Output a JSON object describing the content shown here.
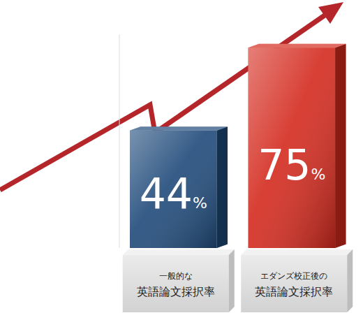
{
  "chart_data": {
    "type": "bar",
    "categories": [
      "一般的な\n英語論文採択率",
      "エダンズ校正後の\n英語論文採択率"
    ],
    "values": [
      44,
      75
    ],
    "value_labels": [
      "44%",
      "75%"
    ],
    "colors": [
      "#1f4a7a",
      "#d42a1e"
    ],
    "ylim": [
      0,
      80
    ],
    "data_labels": true,
    "tick_labels": "x",
    "grid": false
  }
}
